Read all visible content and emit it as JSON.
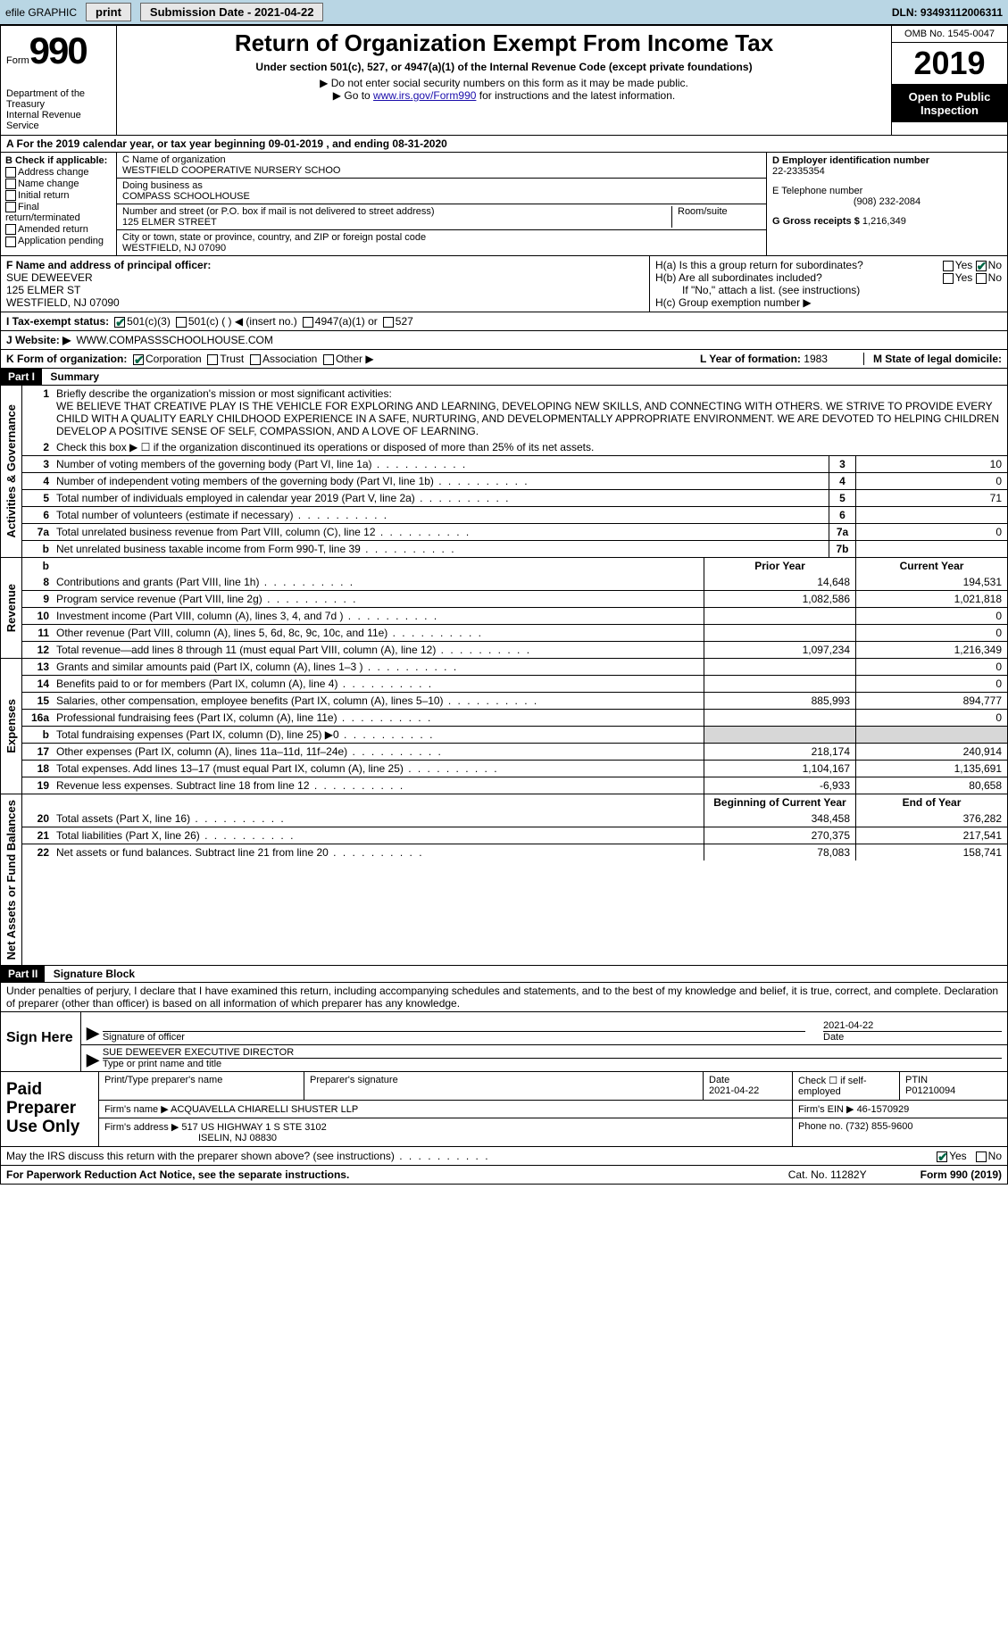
{
  "topbar": {
    "efile": "efile GRAPHIC",
    "print": "print",
    "sub_label": "Submission Date - ",
    "sub_date": "2021-04-22",
    "dln_label": "DLN: ",
    "dln": "93493112006311"
  },
  "hdr": {
    "form_word": "Form",
    "form_num": "990",
    "dept": "Department of the Treasury\nInternal Revenue Service",
    "title": "Return of Organization Exempt From Income Tax",
    "sub1": "Under section 501(c), 527, or 4947(a)(1) of the Internal Revenue Code (except private foundations)",
    "sub2": "▶ Do not enter social security numbers on this form as it may be made public.",
    "sub3a": "▶ Go to ",
    "sub3_link": "www.irs.gov/Form990",
    "sub3b": " for instructions and the latest information.",
    "omb": "OMB No. 1545-0047",
    "year": "2019",
    "open": "Open to Public Inspection"
  },
  "periodA": {
    "txt1": "A For the 2019 calendar year, or tax year beginning ",
    "begin": "09-01-2019",
    "txt2": "   , and ending ",
    "end": "08-31-2020"
  },
  "secB": {
    "title": "B Check if applicable:",
    "opts": [
      "Address change",
      "Name change",
      "Initial return",
      "Final return/terminated",
      "Amended return",
      "Application pending"
    ]
  },
  "secC": {
    "name_lbl": "C Name of organization",
    "name": "WESTFIELD COOPERATIVE NURSERY SCHOO",
    "dba_lbl": "Doing business as",
    "dba": "COMPASS SCHOOLHOUSE",
    "addr_lbl": "Number and street (or P.O. box if mail is not delivered to street address)",
    "room_lbl": "Room/suite",
    "addr": "125 ELMER STREET",
    "city_lbl": "City or town, state or province, country, and ZIP or foreign postal code",
    "city": "WESTFIELD, NJ  07090"
  },
  "secD": {
    "lbl": "D Employer identification number",
    "val": "22-2335354"
  },
  "secE": {
    "lbl": "E Telephone number",
    "val": "(908) 232-2084"
  },
  "secG": {
    "lbl": "G Gross receipts $ ",
    "val": "1,216,349"
  },
  "secF": {
    "lbl": "F Name and address of principal officer:",
    "name": "SUE DEWEEVER",
    "addr1": "125 ELMER ST",
    "addr2": "WESTFIELD, NJ  07090"
  },
  "secH": {
    "a": "H(a)  Is this a group return for subordinates?",
    "b": "H(b)  Are all subordinates included?",
    "note": "If \"No,\" attach a list. (see instructions)",
    "c": "H(c)  Group exemption number ▶"
  },
  "rowI": {
    "lbl": "I   Tax-exempt status:",
    "o1": "501(c)(3)",
    "o2": "501(c) (   ) ◀ (insert no.)",
    "o3": "4947(a)(1) or",
    "o4": "527"
  },
  "rowJ": {
    "lbl": "J   Website: ▶",
    "val": "WWW.COMPASSSCHOOLHOUSE.COM"
  },
  "rowK": {
    "lbl": "K Form of organization:",
    "opts": [
      "Corporation",
      "Trust",
      "Association",
      "Other ▶"
    ],
    "L": "L Year of formation: ",
    "Lval": "1983",
    "M": "M State of legal domicile:",
    "Mval": ""
  },
  "part1": {
    "bar": "Part I",
    "title": "Summary"
  },
  "mission": {
    "num": "1",
    "lbl": "Briefly describe the organization's mission or most significant activities:",
    "txt": "WE BELIEVE THAT CREATIVE PLAY IS THE VEHICLE FOR EXPLORING AND LEARNING, DEVELOPING NEW SKILLS, AND CONNECTING WITH OTHERS. WE STRIVE TO PROVIDE EVERY CHILD WITH A QUALITY EARLY CHILDHOOD EXPERIENCE IN A SAFE, NURTURING, AND DEVELOPMENTALLY APPROPRIATE ENVIRONMENT. WE ARE DEVOTED TO HELPING CHILDREN DEVELOP A POSITIVE SENSE OF SELF, COMPASSION, AND A LOVE OF LEARNING."
  },
  "gov_lines": [
    {
      "n": "2",
      "t": "Check this box ▶ ☐ if the organization discontinued its operations or disposed of more than 25% of its net assets."
    },
    {
      "n": "3",
      "t": "Number of voting members of the governing body (Part VI, line 1a)",
      "box": "3",
      "v": "10"
    },
    {
      "n": "4",
      "t": "Number of independent voting members of the governing body (Part VI, line 1b)",
      "box": "4",
      "v": "0"
    },
    {
      "n": "5",
      "t": "Total number of individuals employed in calendar year 2019 (Part V, line 2a)",
      "box": "5",
      "v": "71"
    },
    {
      "n": "6",
      "t": "Total number of volunteers (estimate if necessary)",
      "box": "6",
      "v": ""
    },
    {
      "n": "7a",
      "t": "Total unrelated business revenue from Part VIII, column (C), line 12",
      "box": "7a",
      "v": "0"
    },
    {
      "n": "b",
      "t": "Net unrelated business taxable income from Form 990-T, line 39",
      "box": "7b",
      "v": ""
    }
  ],
  "rev_head": {
    "prior": "Prior Year",
    "curr": "Current Year"
  },
  "rev_lines": [
    {
      "n": "8",
      "t": "Contributions and grants (Part VIII, line 1h)",
      "p": "14,648",
      "c": "194,531"
    },
    {
      "n": "9",
      "t": "Program service revenue (Part VIII, line 2g)",
      "p": "1,082,586",
      "c": "1,021,818"
    },
    {
      "n": "10",
      "t": "Investment income (Part VIII, column (A), lines 3, 4, and 7d )",
      "p": "",
      "c": "0"
    },
    {
      "n": "11",
      "t": "Other revenue (Part VIII, column (A), lines 5, 6d, 8c, 9c, 10c, and 11e)",
      "p": "",
      "c": "0"
    },
    {
      "n": "12",
      "t": "Total revenue—add lines 8 through 11 (must equal Part VIII, column (A), line 12)",
      "p": "1,097,234",
      "c": "1,216,349"
    }
  ],
  "exp_lines": [
    {
      "n": "13",
      "t": "Grants and similar amounts paid (Part IX, column (A), lines 1–3 )",
      "p": "",
      "c": "0"
    },
    {
      "n": "14",
      "t": "Benefits paid to or for members (Part IX, column (A), line 4)",
      "p": "",
      "c": "0"
    },
    {
      "n": "15",
      "t": "Salaries, other compensation, employee benefits (Part IX, column (A), lines 5–10)",
      "p": "885,993",
      "c": "894,777"
    },
    {
      "n": "16a",
      "t": "Professional fundraising fees (Part IX, column (A), line 11e)",
      "p": "",
      "c": "0"
    },
    {
      "n": "b",
      "t": "Total fundraising expenses (Part IX, column (D), line 25) ▶0",
      "p": "GREY",
      "c": "GREY"
    },
    {
      "n": "17",
      "t": "Other expenses (Part IX, column (A), lines 11a–11d, 11f–24e)",
      "p": "218,174",
      "c": "240,914"
    },
    {
      "n": "18",
      "t": "Total expenses. Add lines 13–17 (must equal Part IX, column (A), line 25)",
      "p": "1,104,167",
      "c": "1,135,691"
    },
    {
      "n": "19",
      "t": "Revenue less expenses. Subtract line 18 from line 12",
      "p": "-6,933",
      "c": "80,658"
    }
  ],
  "na_head": {
    "prior": "Beginning of Current Year",
    "curr": "End of Year"
  },
  "na_lines": [
    {
      "n": "20",
      "t": "Total assets (Part X, line 16)",
      "p": "348,458",
      "c": "376,282"
    },
    {
      "n": "21",
      "t": "Total liabilities (Part X, line 26)",
      "p": "270,375",
      "c": "217,541"
    },
    {
      "n": "22",
      "t": "Net assets or fund balances. Subtract line 21 from line 20",
      "p": "78,083",
      "c": "158,741"
    }
  ],
  "vtabs": {
    "gov": "Activities & Governance",
    "rev": "Revenue",
    "exp": "Expenses",
    "na": "Net Assets or Fund Balances"
  },
  "part2": {
    "bar": "Part II",
    "title": "Signature Block"
  },
  "perjury": "Under penalties of perjury, I declare that I have examined this return, including accompanying schedules and statements, and to the best of my knowledge and belief, it is true, correct, and complete. Declaration of preparer (other than officer) is based on all information of which preparer has any knowledge.",
  "sign": {
    "here": "Sign Here",
    "sig_lbl": "Signature of officer",
    "date_lbl": "Date",
    "date": "2021-04-22",
    "name": "SUE DEWEEVER  EXECUTIVE DIRECTOR",
    "name_lbl": "Type or print name and title"
  },
  "prep": {
    "title": "Paid Preparer Use Only",
    "h1": "Print/Type preparer's name",
    "h2": "Preparer's signature",
    "h3": "Date",
    "h3v": "2021-04-22",
    "h4": "Check ☐ if self-employed",
    "h5": "PTIN",
    "h5v": "P01210094",
    "firm_lbl": "Firm's name    ▶ ",
    "firm": "ACQUAVELLA CHIARELLI SHUSTER LLP",
    "ein_lbl": "Firm's EIN ▶ ",
    "ein": "46-1570929",
    "addr_lbl": "Firm's address ▶ ",
    "addr": "517 US HIGHWAY 1 S STE 3102",
    "addr2": "ISELIN, NJ  08830",
    "phone_lbl": "Phone no. ",
    "phone": "(732) 855-9600"
  },
  "discuss": {
    "q": "May the IRS discuss this return with the preparer shown above? (see instructions)",
    "yes": "Yes",
    "no": "No"
  },
  "footer": {
    "pra": "For Paperwork Reduction Act Notice, see the separate instructions.",
    "cat": "Cat. No. 11282Y",
    "form": "Form 990 (2019)"
  },
  "colors": {
    "topbar_bg": "#b9d6e4",
    "link": "#1a0dab",
    "grey": "#d7d7d7",
    "open_bg": "#000000",
    "open_fg": "#ffffff",
    "mission_line": "#1a4fbf"
  }
}
